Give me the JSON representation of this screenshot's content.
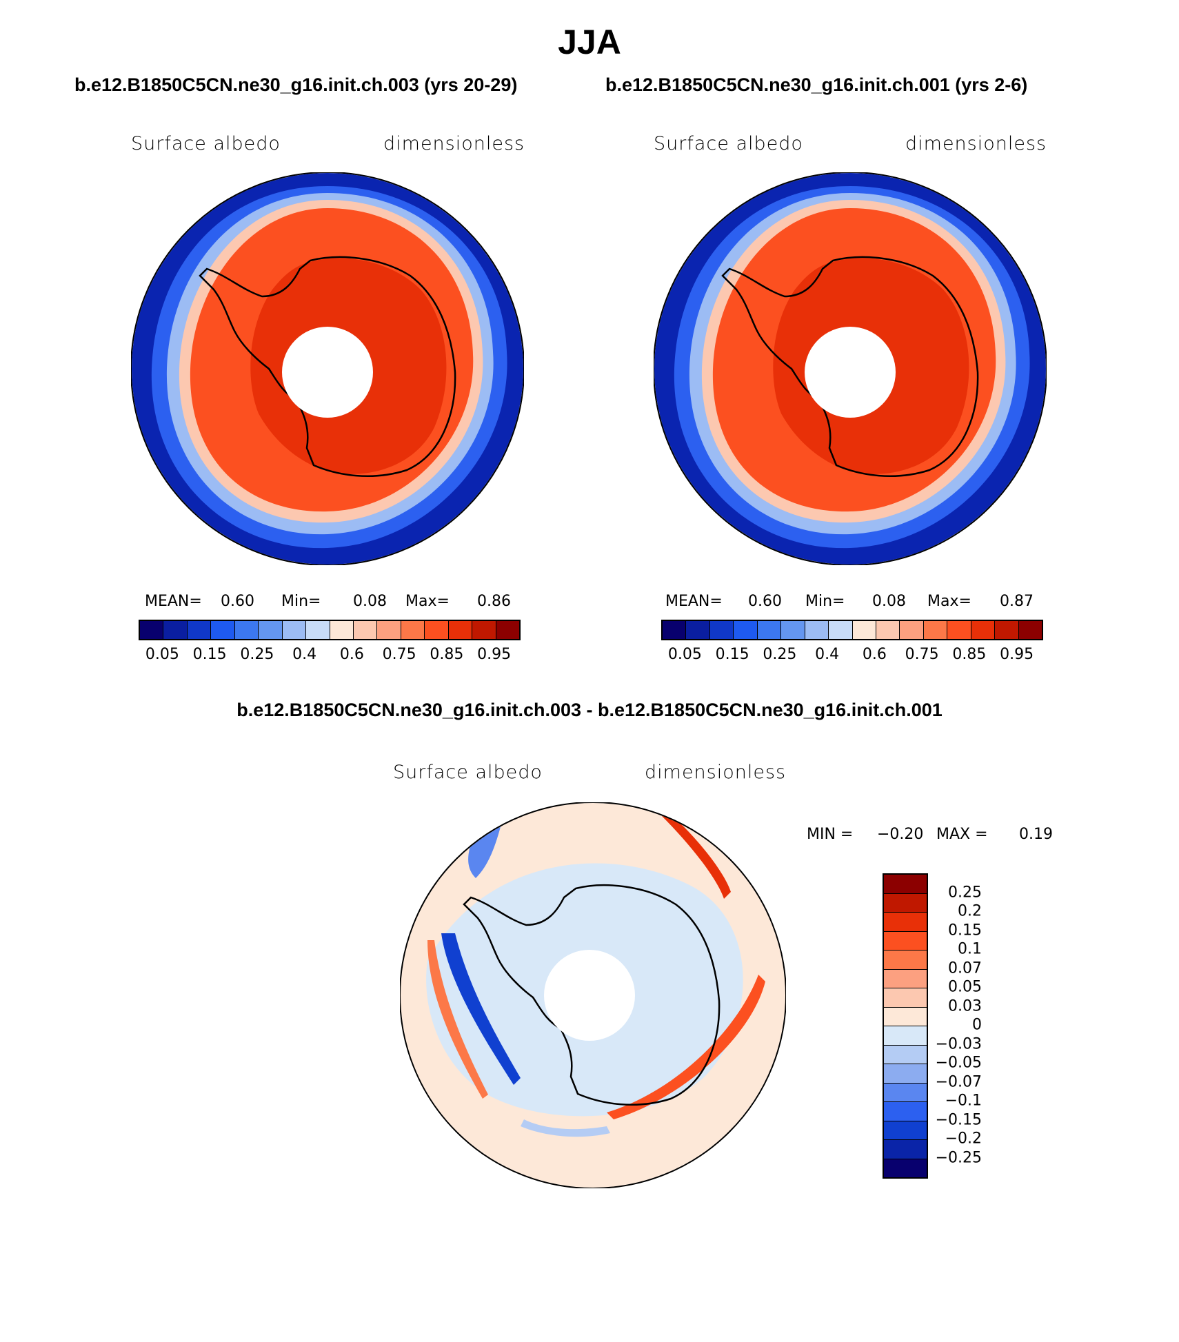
{
  "figure": {
    "season": "JJA",
    "left_run": "b.e12.B1850C5CN.ne30_g16.init.ch.003 (yrs 20-29)",
    "right_run": "b.e12.B1850C5CN.ne30_g16.init.ch.001 (yrs 2-6)",
    "diff_title": "b.e12.B1850C5CN.ne30_g16.init.ch.003 - b.e12.B1850C5CN.ne30_g16.init.ch.001"
  },
  "panels": {
    "left": {
      "variable": "Surface albedo",
      "units": "dimensionless",
      "stats_text": "MEAN=     0.60    Min=      0.08    Max=      0.86",
      "mean_label": "MEAN=",
      "mean": "0.60",
      "min_label": "Min=",
      "min": "0.08",
      "max_label": "Max=",
      "max": "0.86"
    },
    "right": {
      "variable": "Surface albedo",
      "units": "dimensionless",
      "mean_label": "MEAN=",
      "mean": "0.60",
      "min_label": "Min=",
      "min": "0.08",
      "max_label": "Max=",
      "max": "0.87"
    },
    "diff": {
      "variable": "Surface albedo",
      "units": "dimensionless",
      "min_label": "MIN =",
      "min": "−0.20",
      "max_label": "MAX =",
      "max": "0.19"
    }
  },
  "colorbar_abs": {
    "colors": [
      "#08006e",
      "#0a1ea0",
      "#1038c8",
      "#1e5af0",
      "#3c78f0",
      "#6496f0",
      "#9cbcf4",
      "#c8dcf8",
      "#fde8d8",
      "#fcc8b0",
      "#fca080",
      "#fc7848",
      "#fc5020",
      "#e83008",
      "#c01800",
      "#8c0000"
    ],
    "tick_labels": [
      "0.05",
      "0.15",
      "0.25",
      "0.4",
      "0.6",
      "0.75",
      "0.85",
      "0.95"
    ]
  },
  "colorbar_diff": {
    "colors": [
      "#8c0000",
      "#c01800",
      "#e83008",
      "#fc5020",
      "#fc7848",
      "#fca080",
      "#fcc8b0",
      "#fde8d8",
      "#d8e8f8",
      "#b4ccf4",
      "#8cacf0",
      "#5a86f0",
      "#2c60f0",
      "#1040d0",
      "#0a24a8",
      "#08006e"
    ],
    "tick_labels": [
      "0.25",
      "0.2",
      "0.15",
      "0.1",
      "0.07",
      "0.05",
      "0.03",
      "0",
      "−0.03",
      "−0.05",
      "−0.07",
      "−0.1",
      "−0.15",
      "−0.2",
      "−0.25"
    ]
  }
}
